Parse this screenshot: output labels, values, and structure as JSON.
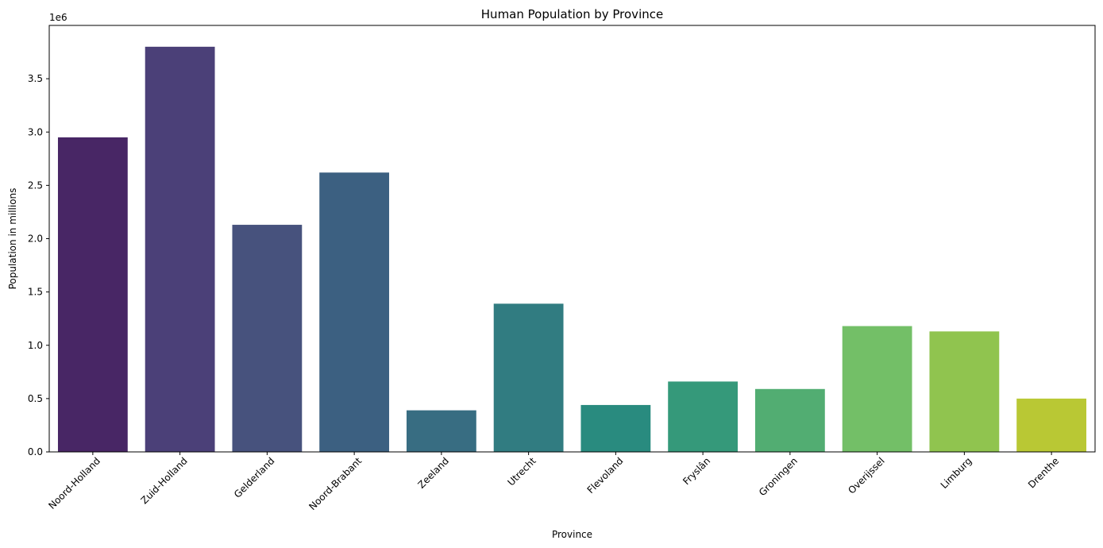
{
  "chart_data": {
    "type": "bar",
    "title": "Human Population by Province",
    "xlabel": "Province",
    "ylabel": "Population in millions",
    "y_scale_label": "1e6",
    "ylim": [
      0,
      4000000
    ],
    "yticks": [
      0,
      500000,
      1000000,
      1500000,
      2000000,
      2500000,
      3000000,
      3500000
    ],
    "ytick_labels": [
      "0.0",
      "0.5",
      "1.0",
      "1.5",
      "2.0",
      "2.5",
      "3.0",
      "3.5"
    ],
    "grid": false,
    "categories": [
      "Noord-Holland",
      "Zuid-Holland",
      "Gelderland",
      "Noord-Brabant",
      "Zeeland",
      "Utrecht",
      "Flevoland",
      "Fryslân",
      "Groningen",
      "Overijssel",
      "Limburg",
      "Drenthe"
    ],
    "values": [
      2950000,
      3800000,
      2130000,
      2620000,
      390000,
      1390000,
      440000,
      660000,
      590000,
      1180000,
      1130000,
      500000
    ],
    "colors": [
      "#482665",
      "#4b4078",
      "#47527d",
      "#3c6081",
      "#386d82",
      "#317c81",
      "#298b7f",
      "#35997a",
      "#52ad72",
      "#73bf67",
      "#90c44f",
      "#b9c834"
    ]
  }
}
